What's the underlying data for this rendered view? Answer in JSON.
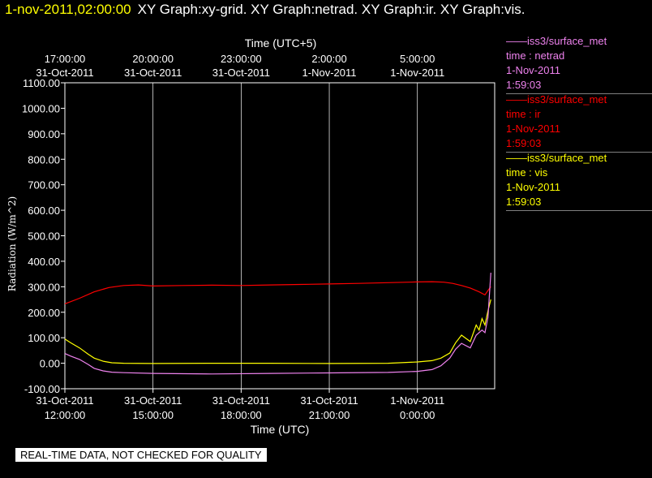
{
  "header": {
    "timestamp": "1-nov-2011,02:00:00",
    "graphs": "XY Graph:xy-grid.  XY Graph:netrad.  XY Graph:ir.  XY Graph:vis."
  },
  "legend": [
    {
      "source": "——iss3/surface_met",
      "field": "time : netrad",
      "date": "1-Nov-2011",
      "time": "1:59:03",
      "color": "#ee82ee"
    },
    {
      "source": "——iss3/surface_met",
      "field": "time : ir",
      "date": "1-Nov-2011",
      "time": "1:59:03",
      "color": "#ff0000"
    },
    {
      "source": "——iss3/surface_met",
      "field": "time : vis",
      "date": "1-Nov-2011",
      "time": "1:59:03",
      "color": "#ffff00"
    }
  ],
  "banner": "REAL-TIME DATA, NOT CHECKED FOR QUALITY",
  "chart_data": {
    "type": "line",
    "xlabel": "Time (UTC)",
    "top_xlabel": "Time (UTC+5)",
    "ylabel": "Radiation (W/m^2)",
    "ylim": [
      -100,
      1100
    ],
    "xlim_hours": [
      0,
      14.63
    ],
    "y_ticks": [
      "1100.00",
      "1000.00",
      "900.00",
      "800.00",
      "700.00",
      "600.00",
      "500.00",
      "400.00",
      "300.00",
      "200.00",
      "100.00",
      "0.00",
      "-100.00"
    ],
    "bottom_ticks": [
      {
        "date": "31-Oct-2011",
        "time": "12:00:00"
      },
      {
        "date": "31-Oct-2011",
        "time": "15:00:00"
      },
      {
        "date": "31-Oct-2011",
        "time": "18:00:00"
      },
      {
        "date": "31-Oct-2011",
        "time": "21:00:00"
      },
      {
        "date": "1-Nov-2011",
        "time": "0:00:00"
      }
    ],
    "top_ticks": [
      {
        "time": "17:00:00",
        "date": "31-Oct-2011"
      },
      {
        "time": "20:00:00",
        "date": "31-Oct-2011"
      },
      {
        "time": "23:00:00",
        "date": "31-Oct-2011"
      },
      {
        "time": "2:00:00",
        "date": "1-Nov-2011"
      },
      {
        "time": "5:00:00",
        "date": "1-Nov-2011"
      }
    ],
    "tick_hours": [
      0,
      3,
      6,
      9,
      12
    ],
    "grid": "vertical",
    "series": [
      {
        "color": "#ff0000",
        "x": [
          0,
          0.5,
          1,
          1.5,
          2,
          2.5,
          3,
          4,
          5,
          6,
          7,
          8,
          9,
          10,
          11,
          12,
          12.5,
          12.9,
          13.2,
          13.5,
          13.8,
          14.1,
          14.3,
          14.4,
          14.5
        ],
        "y": [
          233,
          255,
          280,
          297,
          305,
          307,
          303,
          305,
          306,
          305,
          307,
          309,
          311,
          313,
          316,
          319,
          320,
          318,
          313,
          305,
          295,
          280,
          268,
          285,
          300
        ]
      },
      {
        "color": "#ffff00",
        "x": [
          0,
          0.2,
          0.5,
          0.8,
          1,
          1.3,
          1.6,
          2,
          3,
          5,
          7,
          9,
          11,
          12,
          12.5,
          12.8,
          13.1,
          13.3,
          13.5,
          13.8,
          14,
          14.1,
          14.2,
          14.3,
          14.4,
          14.5
        ],
        "y": [
          95,
          80,
          60,
          35,
          20,
          8,
          2,
          0,
          -1,
          0,
          0,
          -1,
          0,
          5,
          10,
          20,
          40,
          80,
          110,
          85,
          150,
          130,
          175,
          150,
          205,
          250
        ]
      },
      {
        "color": "#ee82ee",
        "x": [
          0,
          0.2,
          0.5,
          0.8,
          1,
          1.3,
          1.6,
          2,
          3,
          5,
          7,
          9,
          11,
          12,
          12.5,
          12.8,
          13.1,
          13.3,
          13.5,
          13.8,
          14,
          14.2,
          14.3,
          14.4,
          14.5
        ],
        "y": [
          38,
          28,
          15,
          -5,
          -20,
          -30,
          -35,
          -37,
          -40,
          -42,
          -40,
          -38,
          -36,
          -32,
          -25,
          -10,
          20,
          55,
          78,
          60,
          110,
          130,
          120,
          180,
          355
        ]
      }
    ]
  }
}
